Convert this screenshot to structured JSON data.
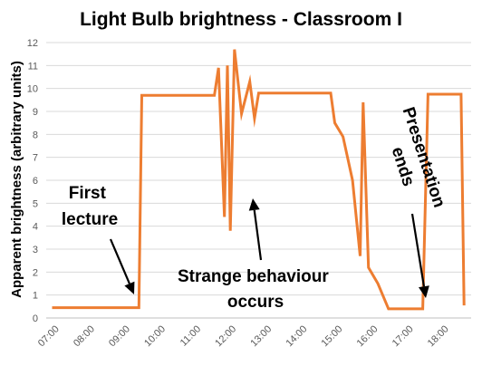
{
  "chart_data": {
    "type": "line",
    "title": "Light Bulb brightness - Classroom I",
    "xlabel": "",
    "ylabel": "Apparent brightness (arbitrary units)",
    "ylim": [
      0,
      12
    ],
    "y_ticks": [
      "0",
      "1",
      "2",
      "3",
      "4",
      "5",
      "6",
      "7",
      "8",
      "9",
      "10",
      "11",
      "12"
    ],
    "xlim": [
      "06:45",
      "18:45"
    ],
    "x_ticks": [
      "07:00",
      "08:00",
      "09:00",
      "10:00",
      "11:00",
      "12:00",
      "13:00",
      "14:00",
      "15:00",
      "16:00",
      "17:00",
      "18:00"
    ],
    "grid": true,
    "legend": "none",
    "series": [
      {
        "color": "#ED7D31",
        "x": [
          "06:55",
          "09:22",
          "09:27",
          "11:30",
          "11:37",
          "11:47",
          "11:52",
          "11:57",
          "12:04",
          "12:16",
          "12:30",
          "12:38",
          "12:45",
          "14:47",
          "14:54",
          "15:08",
          "15:24",
          "15:37",
          "15:42",
          "15:51",
          "16:07",
          "16:25",
          "17:23",
          "17:32",
          "17:49",
          "18:28",
          "18:33"
        ],
        "y": [
          0.45,
          0.45,
          9.7,
          9.7,
          10.9,
          4.4,
          11.0,
          3.8,
          11.7,
          8.9,
          10.3,
          8.7,
          9.8,
          9.8,
          8.5,
          7.9,
          6.0,
          2.7,
          9.4,
          2.2,
          1.5,
          0.4,
          0.4,
          9.75,
          9.75,
          9.75,
          0.55
        ]
      }
    ],
    "annotations": [
      {
        "lines": [
          "First",
          "lecture"
        ]
      },
      {
        "lines": [
          "Strange behaviour",
          "occurs"
        ]
      },
      {
        "lines": [
          "Presentation",
          "ends"
        ]
      }
    ]
  }
}
